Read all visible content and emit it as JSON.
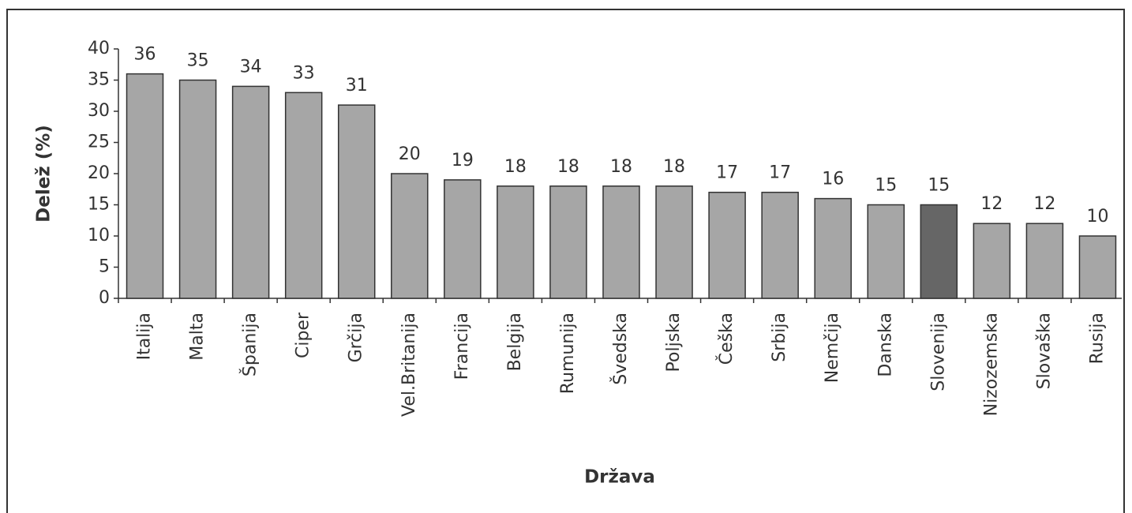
{
  "chart_data": {
    "type": "bar",
    "y_label": "Delež (%)",
    "x_label": "Država",
    "categories": [
      "Italija",
      "Malta",
      "Španija",
      "Ciper",
      "Grčija",
      "Vel.Britanija",
      "Francija",
      "Belgija",
      "Rumunija",
      "Švedska",
      "Poljska",
      "Češka",
      "Srbija",
      "Nemčija",
      "Danska",
      "Slovenija",
      "Nizozemska",
      "Slovaška",
      "Rusija"
    ],
    "values": [
      36,
      35,
      34,
      33,
      31,
      20,
      19,
      18,
      18,
      18,
      18,
      17,
      17,
      16,
      15,
      15,
      12,
      12,
      10
    ],
    "colors": [
      "#a6a6a6",
      "#a6a6a6",
      "#a6a6a6",
      "#a6a6a6",
      "#a6a6a6",
      "#a6a6a6",
      "#a6a6a6",
      "#a6a6a6",
      "#a6a6a6",
      "#a6a6a6",
      "#a6a6a6",
      "#a6a6a6",
      "#a6a6a6",
      "#a6a6a6",
      "#a6a6a6",
      "#666666",
      "#a6a6a6",
      "#a6a6a6",
      "#a6a6a6"
    ],
    "ylim": [
      0,
      40
    ],
    "yticks": [
      0,
      5,
      10,
      15,
      20,
      25,
      30,
      35,
      40
    ],
    "grid": false
  }
}
